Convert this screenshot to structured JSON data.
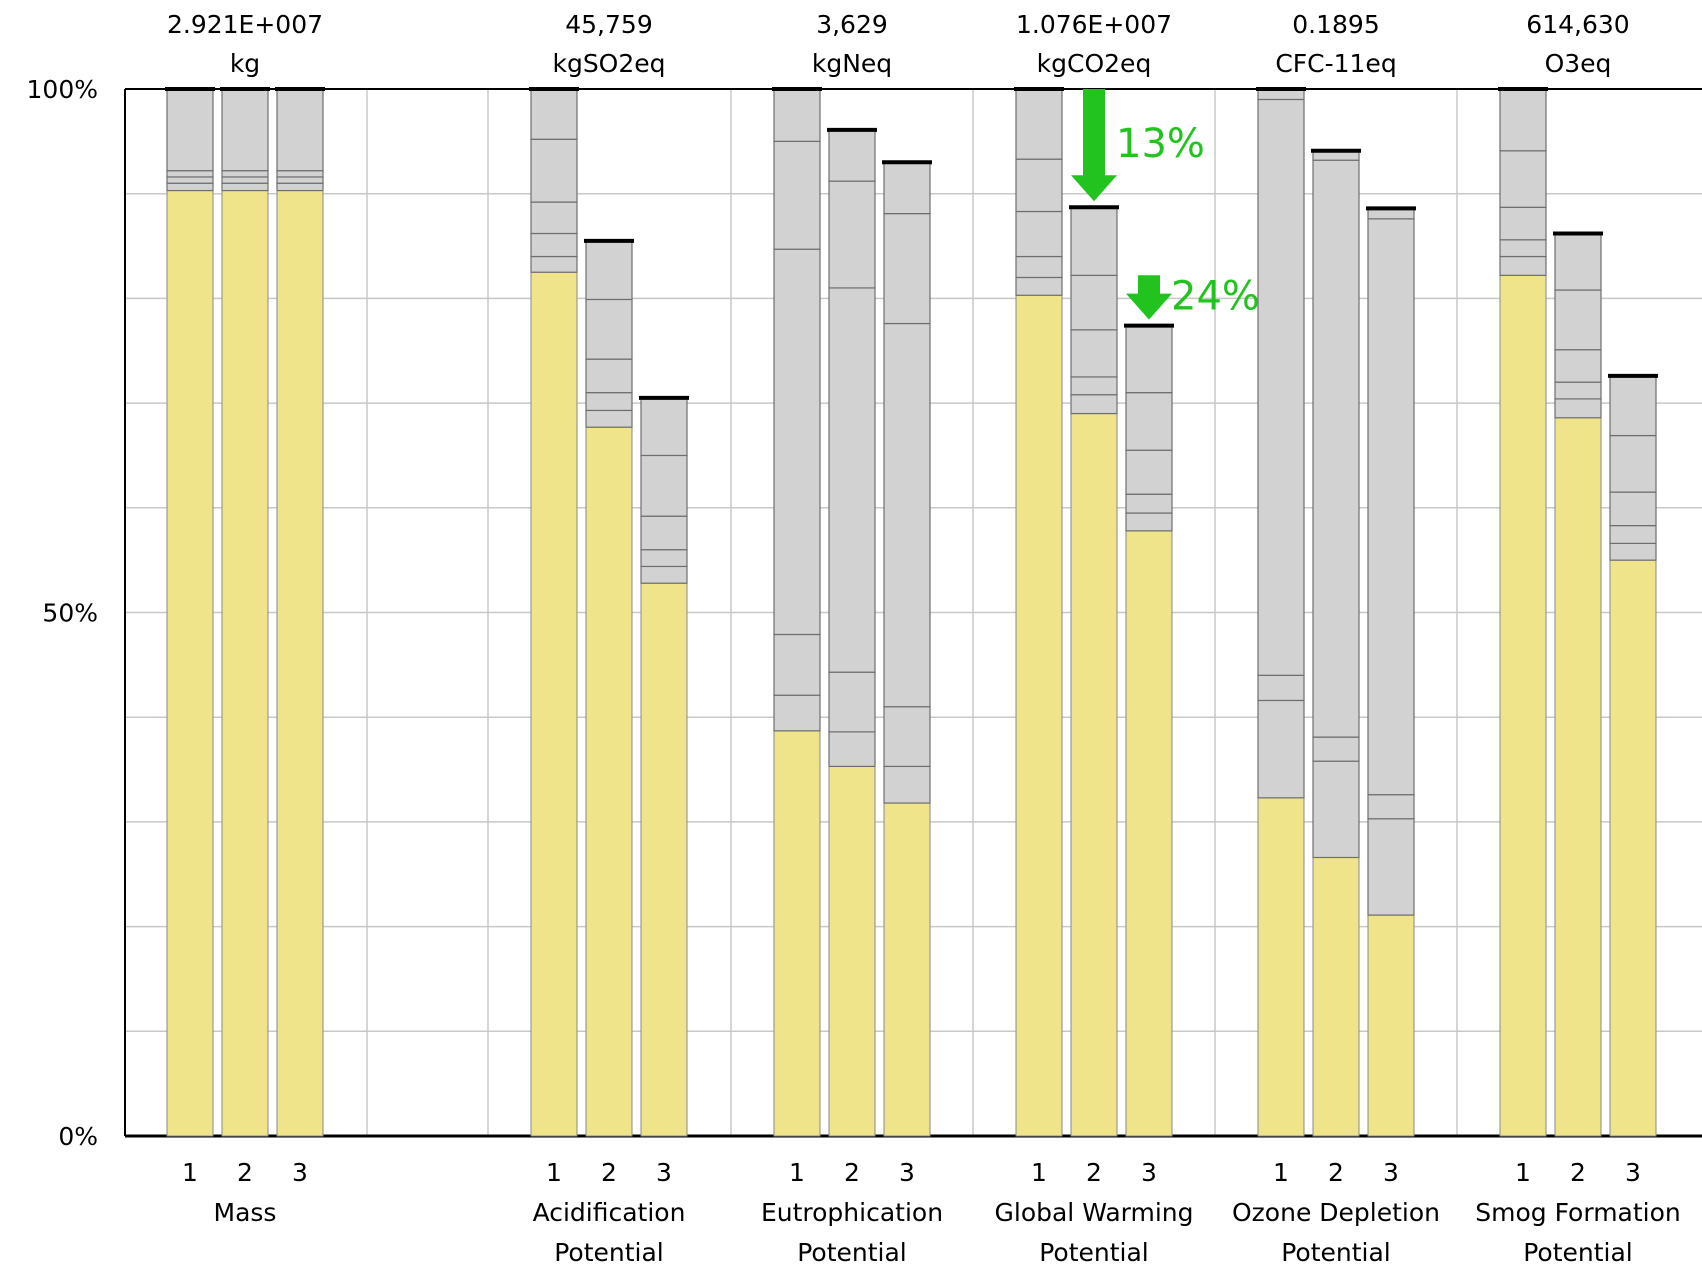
{
  "chart_data": {
    "type": "bar",
    "stacked": true,
    "ylim": [
      0,
      100
    ],
    "y_ticks": [
      "0%",
      "50%",
      "100%"
    ],
    "grid": true,
    "legend": "none",
    "bar_labels": [
      "1",
      "2",
      "3"
    ],
    "colors": {
      "base": "#efe48a",
      "segment": "#d2d2d2",
      "arrow": "#22c31f",
      "axis": "#000000",
      "grid": "#c8c8c8"
    },
    "groups": [
      {
        "name": [
          "Mass"
        ],
        "total": "2.921E+007",
        "unit": "kg",
        "bars": [
          {
            "base": 90.3,
            "boundaries": [
              91.0,
              91.6,
              92.2,
              100
            ]
          },
          {
            "base": 90.3,
            "boundaries": [
              91.0,
              91.6,
              92.2,
              100
            ]
          },
          {
            "base": 90.3,
            "boundaries": [
              91.0,
              91.6,
              92.2,
              100
            ]
          }
        ]
      },
      {
        "name": [
          "Acidification",
          "Potential"
        ],
        "total": "45,759",
        "unit": "kgSO2eq",
        "bars": [
          {
            "base": 82.5,
            "boundaries": [
              84.0,
              86.2,
              89.2,
              95.2,
              100
            ]
          },
          {
            "base": 67.7,
            "boundaries": [
              69.3,
              71.0,
              74.2,
              79.9,
              85.5
            ]
          },
          {
            "base": 52.8,
            "boundaries": [
              54.4,
              56.0,
              59.2,
              65.0,
              70.5
            ]
          }
        ]
      },
      {
        "name": [
          "Eutrophication",
          "Potential"
        ],
        "total": "3,629",
        "unit": "kgNeq",
        "bars": [
          {
            "base": 38.7,
            "boundaries": [
              42.1,
              47.9,
              84.7,
              95.0,
              100
            ]
          },
          {
            "base": 35.3,
            "boundaries": [
              38.6,
              44.3,
              81.0,
              91.2,
              96.1
            ]
          },
          {
            "base": 31.8,
            "boundaries": [
              35.3,
              41.0,
              77.6,
              88.1,
              93.0
            ]
          }
        ]
      },
      {
        "name": [
          "Global Warming",
          "Potential"
        ],
        "total": "1.076E+007",
        "unit": "kgCO2eq",
        "bars": [
          {
            "base": 80.3,
            "boundaries": [
              82.0,
              84.0,
              88.3,
              93.3,
              100
            ]
          },
          {
            "base": 69.0,
            "boundaries": [
              70.8,
              72.5,
              77.0,
              82.2,
              88.7
            ]
          },
          {
            "base": 57.8,
            "boundaries": [
              59.5,
              61.3,
              65.5,
              71.0,
              77.4
            ]
          }
        ]
      },
      {
        "name": [
          "Ozone Depletion",
          "Potential"
        ],
        "total": "0.1895",
        "unit": "CFC-11eq",
        "bars": [
          {
            "base": 32.3,
            "boundaries": [
              41.6,
              44.0,
              99.0,
              100
            ]
          },
          {
            "base": 26.6,
            "boundaries": [
              35.8,
              38.1,
              93.2,
              94.1
            ]
          },
          {
            "base": 21.1,
            "boundaries": [
              30.3,
              32.6,
              87.6,
              88.6
            ]
          }
        ]
      },
      {
        "name": [
          "Smog Formation",
          "Potential"
        ],
        "total": "614,630",
        "unit": "O3eq",
        "bars": [
          {
            "base": 82.2,
            "boundaries": [
              84.0,
              85.6,
              88.7,
              94.1,
              100
            ]
          },
          {
            "base": 68.6,
            "boundaries": [
              70.4,
              72.0,
              75.1,
              80.8,
              86.2
            ]
          },
          {
            "base": 55.0,
            "boundaries": [
              56.6,
              58.3,
              61.5,
              66.9,
              72.6
            ]
          }
        ]
      }
    ],
    "annotations": [
      {
        "text": "13%",
        "group": 3,
        "from_bar": 0,
        "to_bar": 1
      },
      {
        "text": "24%",
        "group": 3,
        "from_bar": 1,
        "to_bar": 2
      }
    ]
  }
}
